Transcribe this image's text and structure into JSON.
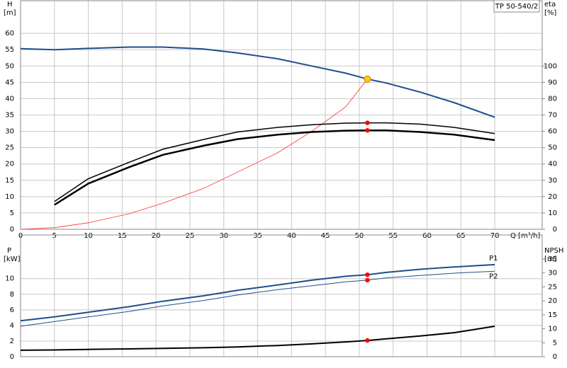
{
  "chart_data": [
    {
      "type": "line",
      "title": "TP 50-540/2",
      "ylabel": "H",
      "yunit": "[m]",
      "y2label": "eta",
      "y2unit": "[%]",
      "xlabel": "Q [m³/h]",
      "xlim": [
        0,
        77
      ],
      "xticks": [
        0,
        5,
        10,
        15,
        20,
        25,
        30,
        35,
        40,
        45,
        50,
        55,
        60,
        65,
        70
      ],
      "ylim": [
        0,
        70
      ],
      "yticks": [
        0,
        5,
        10,
        15,
        20,
        25,
        30,
        35,
        40,
        45,
        50,
        55,
        60
      ],
      "y2lim": [
        0,
        140
      ],
      "y2ticks": [
        0,
        10,
        20,
        30,
        40,
        50,
        60,
        70,
        80,
        90,
        100
      ],
      "grid": true,
      "x": [
        0,
        5,
        10,
        16,
        21,
        27,
        32,
        38,
        43,
        48,
        51.2,
        54,
        59,
        64,
        70
      ],
      "series": [
        {
          "color": "#1f4e8c",
          "width": 2,
          "values": [
            55.3,
            55,
            55.4,
            55.8,
            55.8,
            55.2,
            54,
            52.2,
            50,
            47.8,
            46,
            44.8,
            42,
            38.8,
            34.3
          ]
        },
        {
          "color": "#ff3030",
          "width": 0.8,
          "axis": "y2",
          "values": [
            0,
            1,
            4,
            9.5,
            16,
            25,
            35,
            47,
            60,
            75,
            92,
            null,
            null,
            null,
            null
          ]
        },
        {
          "color": "#000000",
          "width": 1.5,
          "axis": "y2",
          "values": [
            null,
            17,
            31,
            41,
            49,
            55,
            59.6,
            62.4,
            64,
            65,
            65.2,
            65.2,
            64.4,
            62.4,
            58.6
          ]
        },
        {
          "color": "#000000",
          "width": 2.5,
          "axis": "y2",
          "values": [
            null,
            15,
            28,
            38,
            45.6,
            51.2,
            55.2,
            58,
            59.6,
            60.4,
            60.6,
            60.6,
            59.6,
            58,
            54.6
          ]
        }
      ],
      "markers": [
        {
          "x": 51.2,
          "y": 46,
          "color": "#ffcc00"
        },
        {
          "x": 51.2,
          "y": 65.2,
          "axis": "y2",
          "color": "#ff0000"
        },
        {
          "x": 51.2,
          "y": 60.6,
          "axis": "y2",
          "color": "#ff0000"
        }
      ]
    },
    {
      "type": "line",
      "ylabel": "P",
      "yunit": "[kW]",
      "y2label": "NPSH",
      "y2unit": "[m]",
      "xlim": [
        0,
        77
      ],
      "ylim": [
        0,
        15.6
      ],
      "yticks": [
        0,
        2,
        4,
        6,
        8,
        10
      ],
      "y2lim": [
        0,
        43.6
      ],
      "y2ticks": [
        0,
        5,
        10,
        15,
        20,
        25,
        30,
        35
      ],
      "grid": true,
      "x": [
        0,
        5,
        10,
        16,
        21,
        27,
        32,
        38,
        43,
        48,
        51.2,
        54,
        59,
        64,
        70
      ],
      "series": [
        {
          "name": "P1",
          "color": "#1f4e8c",
          "width": 2,
          "values": [
            4.6,
            5.1,
            5.7,
            6.4,
            7.1,
            7.8,
            8.5,
            9.2,
            9.8,
            10.3,
            10.5,
            10.8,
            11.2,
            11.5,
            11.8
          ]
        },
        {
          "name": "P2",
          "color": "#1f4e8c",
          "width": 1,
          "values": [
            3.9,
            4.5,
            5.1,
            5.8,
            6.5,
            7.2,
            7.9,
            8.6,
            9.1,
            9.6,
            9.8,
            10.1,
            10.4,
            10.7,
            10.95
          ]
        },
        {
          "color": "#000000",
          "width": 2,
          "axis": "y2",
          "values": [
            2.3,
            2.4,
            2.6,
            2.8,
            3,
            3.2,
            3.5,
            4,
            4.6,
            5.3,
            5.8,
            6.4,
            7.4,
            8.6,
            10.9
          ]
        }
      ],
      "markers": [
        {
          "x": 51.2,
          "y": 10.5,
          "color": "#ff0000"
        },
        {
          "x": 51.2,
          "y": 9.8,
          "color": "#ff0000"
        },
        {
          "x": 51.2,
          "y": 5.8,
          "axis": "y2",
          "color": "#ff0000"
        }
      ]
    }
  ]
}
